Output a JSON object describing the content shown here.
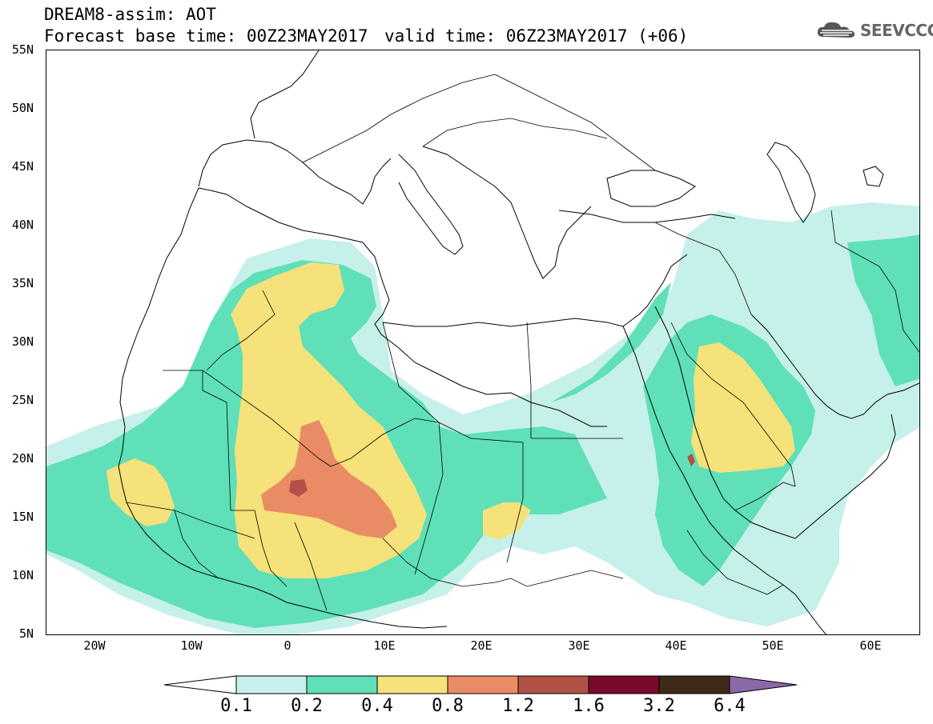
{
  "header": {
    "model_line": "DREAM8-assim: AOT",
    "base_time_line": "Forecast base time: 00Z23MAY2017",
    "valid_time_line": "valid time: 06Z23MAY2017 (+06)",
    "logo_text": "SEEVCCC"
  },
  "map": {
    "lat_labels": [
      "55N",
      "50N",
      "45N",
      "40N",
      "35N",
      "30N",
      "25N",
      "20N",
      "15N",
      "10N",
      "5N"
    ],
    "lon_labels": [
      "20W",
      "10W",
      "0",
      "10E",
      "20E",
      "30E",
      "40E",
      "50E",
      "60E"
    ],
    "extent": {
      "lon_min": -25,
      "lon_max": 65,
      "lat_min": 5,
      "lat_max": 55
    }
  },
  "colorbar": {
    "labels": [
      "0.1",
      "0.2",
      "0.4",
      "0.8",
      "1.2",
      "1.6",
      "3.2",
      "6.4"
    ],
    "colors": [
      "#ffffff",
      "#c6f0ea",
      "#5fe0b8",
      "#f5e27a",
      "#e98c66",
      "#b25146",
      "#7a0a2c",
      "#3f2a1a",
      "#8b68a8"
    ]
  }
}
